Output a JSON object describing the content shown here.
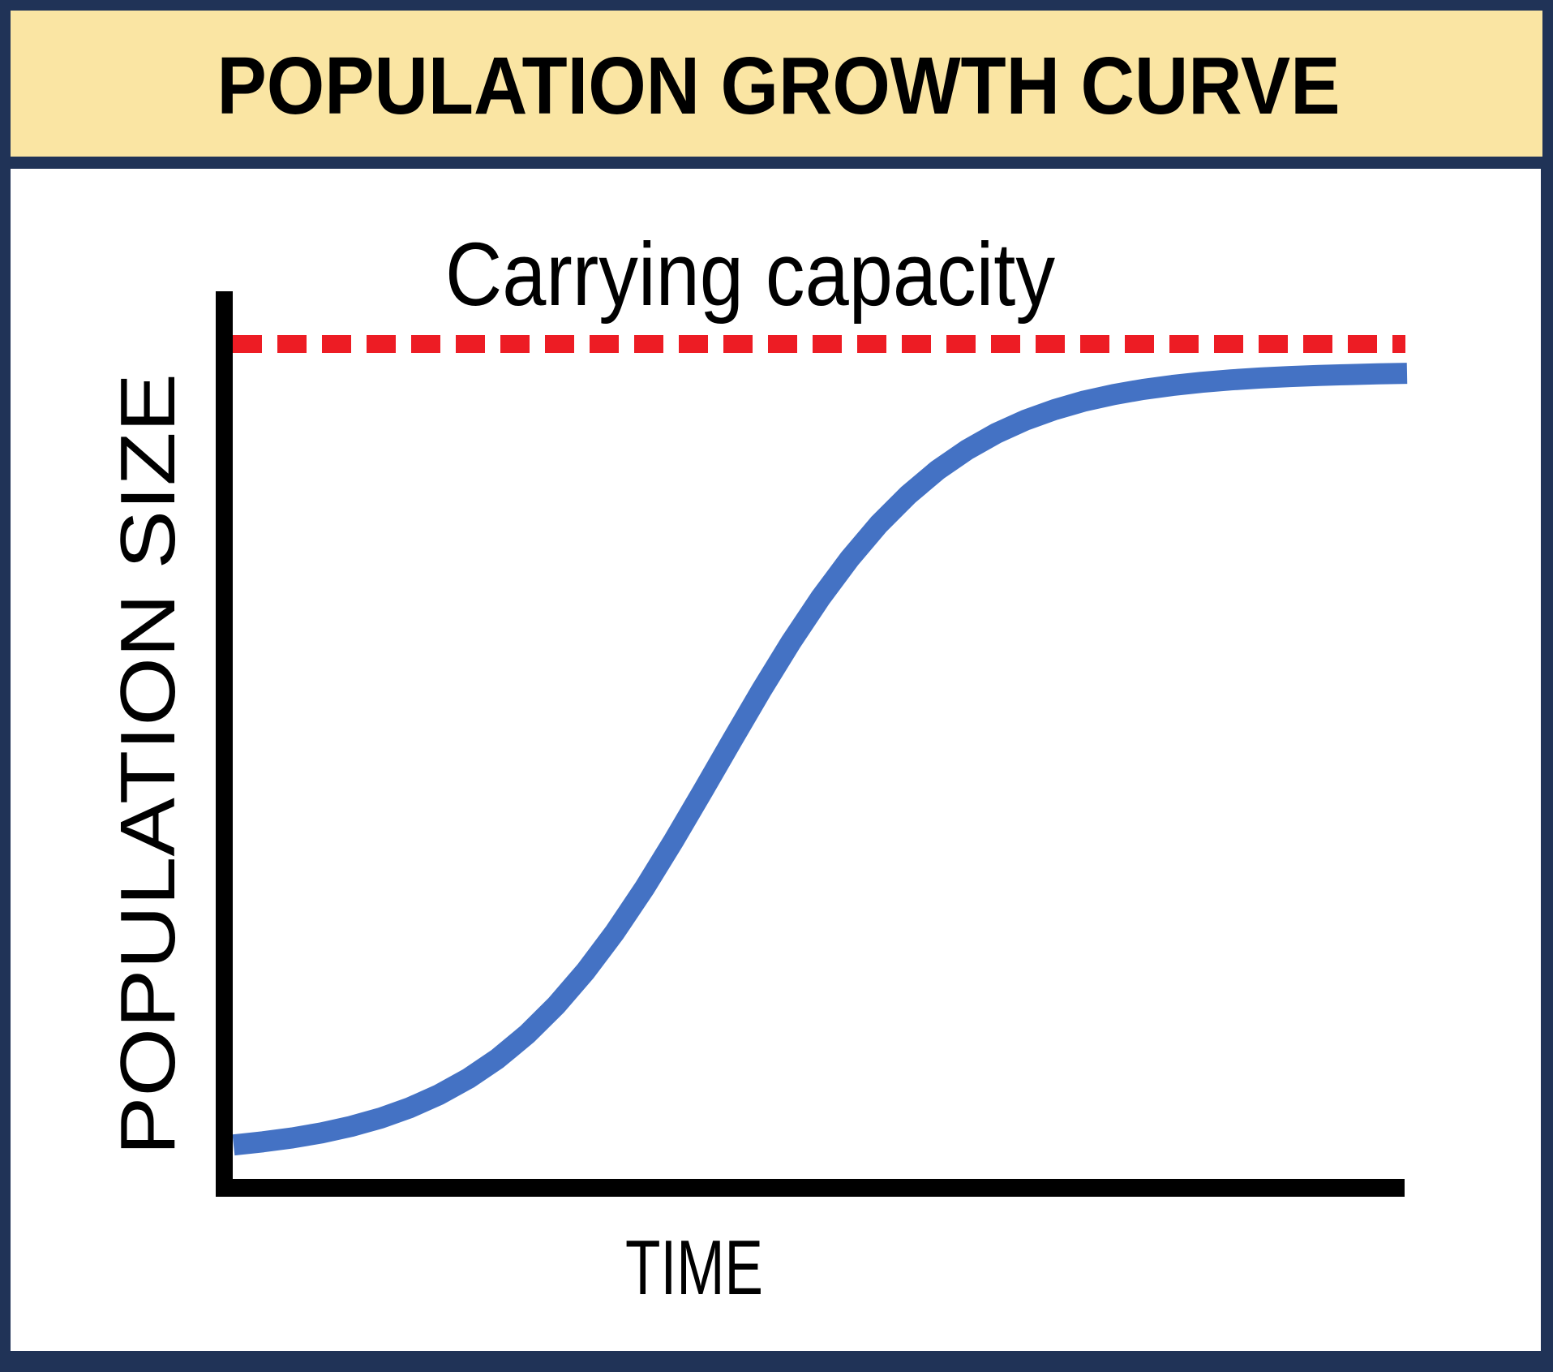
{
  "header": {
    "title": "POPULATION GROWTH CURVE"
  },
  "chart": {
    "capacity_label": "Carrying capacity",
    "y_axis_label": "POPULATION SIZE",
    "x_axis_label": "TIME"
  },
  "colors": {
    "border_navy": "#203357",
    "header_cream": "#FAE5A3",
    "plot_white": "#FFFFFF",
    "axis_black": "#000000",
    "capacity_red": "#ED1C24",
    "curve_blue": "#4472C4",
    "text_black": "#000000"
  },
  "chart_data": {
    "type": "line",
    "title": "POPULATION GROWTH CURVE",
    "xlabel": "TIME",
    "ylabel": "POPULATION SIZE",
    "x_range": [
      0,
      1
    ],
    "y_range": [
      0,
      1.1
    ],
    "grid": false,
    "legend": "none",
    "axes_style": "qualitative (no tick labels)",
    "annotations": [
      {
        "label": "Carrying capacity",
        "type": "dashed-horizontal-line",
        "y": 1.0,
        "color": "#ED1C24"
      }
    ],
    "series": [
      {
        "name": "population (logistic S-curve)",
        "color": "#4472C4",
        "x": [
          0.0,
          0.025,
          0.05,
          0.075,
          0.1,
          0.125,
          0.15,
          0.175,
          0.2,
          0.225,
          0.25,
          0.275,
          0.3,
          0.325,
          0.35,
          0.375,
          0.4,
          0.425,
          0.45,
          0.475,
          0.5,
          0.525,
          0.55,
          0.575,
          0.6,
          0.625,
          0.65,
          0.675,
          0.7,
          0.725,
          0.75,
          0.775,
          0.8,
          0.825,
          0.85,
          0.875,
          0.9,
          0.925,
          0.95,
          0.975,
          1.0
        ],
        "y": [
          0.0133,
          0.0173,
          0.0223,
          0.0287,
          0.037,
          0.0474,
          0.0607,
          0.0773,
          0.098,
          0.1234,
          0.1545,
          0.1915,
          0.235,
          0.2849,
          0.3407,
          0.4013,
          0.4651,
          0.53,
          0.5939,
          0.6548,
          0.7109,
          0.7613,
          0.8054,
          0.8429,
          0.8744,
          0.9002,
          0.9213,
          0.9382,
          0.9517,
          0.9624,
          0.9707,
          0.9772,
          0.9823,
          0.9863,
          0.9894,
          0.9918,
          0.9937,
          0.9951,
          0.9962,
          0.9971,
          0.9978
        ]
      }
    ]
  }
}
